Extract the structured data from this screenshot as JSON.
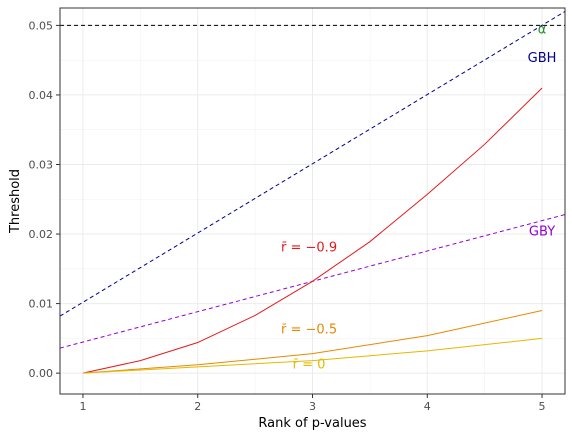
{
  "chart_data": {
    "type": "line",
    "xlabel": "Rank of p-values",
    "ylabel": "Threshold",
    "xlim": [
      0.8,
      5.2
    ],
    "ylim": [
      -0.003,
      0.0525
    ],
    "x_ticks": [
      1,
      2,
      3,
      4,
      5
    ],
    "x_tick_labels": [
      "1",
      "2",
      "3",
      "4",
      "5"
    ],
    "y_ticks": [
      0.0,
      0.01,
      0.02,
      0.03,
      0.04,
      0.05
    ],
    "y_tick_labels": [
      "0.00",
      "0.01",
      "0.02",
      "0.03",
      "0.04",
      "0.05"
    ],
    "grid": true,
    "series": [
      {
        "name": "α",
        "style": "dashed",
        "color": "#000000",
        "x": [
          0.8,
          5.2
        ],
        "y": [
          0.05,
          0.05
        ]
      },
      {
        "name": "GBH",
        "style": "dashed",
        "color": "#00008B",
        "x": [
          0.8,
          5.2
        ],
        "y": [
          0.0082,
          0.052
        ]
      },
      {
        "name": "GBY",
        "style": "dashed",
        "color": "#9400D3",
        "x": [
          0.8,
          5.2
        ],
        "y": [
          0.0036,
          0.0228
        ]
      },
      {
        "name": "r̄ = −0.9",
        "style": "solid",
        "color": "#E41A1C",
        "x": [
          1,
          1.5,
          2,
          2.5,
          3,
          3.5,
          4,
          4.5,
          5
        ],
        "y": [
          0.0,
          0.0018,
          0.0044,
          0.0083,
          0.0132,
          0.0189,
          0.0257,
          0.0329,
          0.041
        ]
      },
      {
        "name": "r̄ = −0.5",
        "style": "solid",
        "color": "#E68A00",
        "x": [
          1,
          2,
          3,
          4,
          5
        ],
        "y": [
          0.0,
          0.0012,
          0.0028,
          0.0054,
          0.009
        ]
      },
      {
        "name": "r̄ = 0",
        "style": "solid",
        "color": "#E6B800",
        "x": [
          1,
          2,
          3,
          4,
          5
        ],
        "y": [
          0.0,
          0.0009,
          0.0018,
          0.0032,
          0.005
        ]
      }
    ],
    "annotations": [
      {
        "text": "α",
        "x": 5.0,
        "y": 0.0488,
        "color": "#228B22"
      },
      {
        "text": "GBH",
        "x": 5.0,
        "y": 0.0447,
        "color": "#00008B"
      },
      {
        "text": "GBY",
        "x": 5.0,
        "y": 0.0198,
        "color": "#9400D3"
      },
      {
        "text": "r̄ = −0.9",
        "x": 2.97,
        "y": 0.0175,
        "color": "#E41A1C"
      },
      {
        "text": "r̄ = −0.5",
        "x": 2.97,
        "y": 0.0057,
        "color": "#E68A00"
      },
      {
        "text": "r̄ = 0",
        "x": 2.97,
        "y": 0.0007,
        "color": "#E6B800"
      }
    ]
  }
}
